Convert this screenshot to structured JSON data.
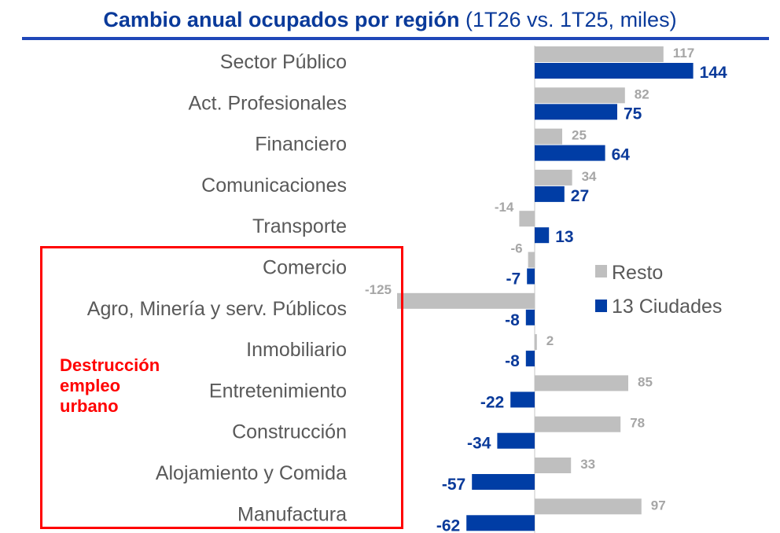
{
  "title": {
    "main": "Cambio anual ocupados por región",
    "sub": "(1T26 vs. 1T25, miles)"
  },
  "colors": {
    "resto": "#bfbfbf",
    "ciudades": "#003da5",
    "title": "#0a3a9a",
    "highlight": "#ff0000"
  },
  "annotation": "Destrucción\nempleo\nurbano",
  "chart_data": {
    "type": "bar",
    "orientation": "horizontal",
    "categories": [
      "Sector Público",
      "Act. Profesionales",
      "Financiero",
      "Comunicaciones",
      "Transporte",
      "Comercio",
      "Agro, Minería y serv. Públicos",
      "Inmobiliario",
      "Entretenimiento",
      "Construcción",
      "Alojamiento y Comida",
      "Manufactura"
    ],
    "series": [
      {
        "name": "Resto",
        "values": [
          117,
          82,
          25,
          34,
          -14,
          -6,
          -125,
          2,
          85,
          78,
          33,
          97
        ]
      },
      {
        "name": "13 Ciudades",
        "values": [
          144,
          75,
          64,
          27,
          13,
          -7,
          -8,
          -8,
          -22,
          -34,
          -57,
          -62
        ]
      }
    ],
    "title": "Cambio anual ocupados por región",
    "xlabel": "",
    "ylabel": "",
    "grid": false,
    "legend": "right"
  }
}
